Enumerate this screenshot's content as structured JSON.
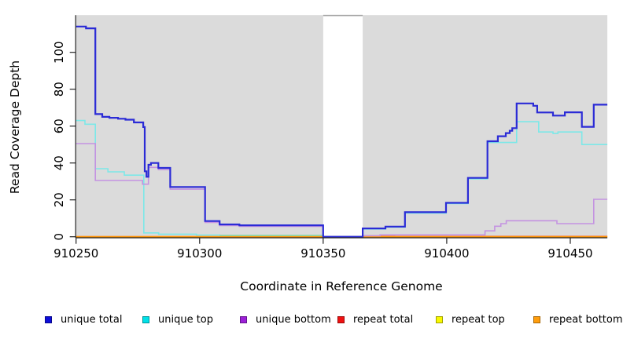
{
  "chart_data": {
    "type": "line",
    "subtype": "step-coverage-plot",
    "title": "",
    "xlabel": "Coordinate in Reference Genome",
    "ylabel": "Read Coverage Depth",
    "xlim": [
      910250,
      910465
    ],
    "ylim": [
      0,
      120
    ],
    "x_ticks": [
      910250,
      910300,
      910350,
      910400,
      910450
    ],
    "y_ticks": [
      0,
      20,
      40,
      60,
      80,
      100
    ],
    "grid": false,
    "plot_background": "#dbdbdb",
    "gap_region": {
      "from": 910350,
      "to": 910366,
      "fill": "#ffffff",
      "cap_color": "#a0a0a0"
    },
    "legend_position": "bottom",
    "series": [
      {
        "name": "unique total",
        "color": "#2b2bd6",
        "legend_color": "#0d0dd9",
        "points": [
          [
            910250,
            114
          ],
          [
            910254,
            113
          ],
          [
            910257.8,
            66.5
          ],
          [
            910260.6,
            65
          ],
          [
            910263.5,
            64.5
          ],
          [
            910267,
            64
          ],
          [
            910270,
            63.5
          ],
          [
            910273.4,
            62
          ],
          [
            910277.2,
            59.5
          ],
          [
            910277.8,
            35.5
          ],
          [
            910278.5,
            32.5
          ],
          [
            910279.3,
            39
          ],
          [
            910280.3,
            40
          ],
          [
            910283.3,
            37.3
          ],
          [
            910288.1,
            27
          ],
          [
            910302.2,
            8.5
          ],
          [
            910308.1,
            6.7
          ],
          [
            910316.1,
            6.2
          ],
          [
            910350,
            0
          ],
          [
            910366,
            4.5
          ],
          [
            910375.2,
            5.5
          ],
          [
            910383.1,
            13.3
          ],
          [
            910399.7,
            18.4
          ],
          [
            910408.6,
            31.9
          ],
          [
            910416.5,
            51.8
          ],
          [
            910420.7,
            54.5
          ],
          [
            910423.9,
            56.2
          ],
          [
            910425.5,
            57.5
          ],
          [
            910426.5,
            58.9
          ],
          [
            910428.3,
            72.3
          ],
          [
            910435,
            71
          ],
          [
            910436.6,
            67.4
          ],
          [
            910443,
            65.7
          ],
          [
            910447.8,
            67.5
          ],
          [
            910454.7,
            59.6
          ],
          [
            910459.5,
            71.6
          ],
          [
            910465,
            71.6
          ]
        ]
      },
      {
        "name": "unique top",
        "color": "#7de8e8",
        "legend_color": "#00e1e8",
        "points": [
          [
            910250,
            63
          ],
          [
            910253.6,
            61
          ],
          [
            910257.8,
            36.9
          ],
          [
            910262.9,
            35.2
          ],
          [
            910269.5,
            33.4
          ],
          [
            910277.4,
            2.1
          ],
          [
            910283.4,
            1.4
          ],
          [
            910298.7,
            0.9
          ],
          [
            910308.1,
            0.7
          ],
          [
            910350,
            0
          ],
          [
            910366,
            4.2
          ],
          [
            910375.2,
            5.2
          ],
          [
            910383.1,
            12.8
          ],
          [
            910399.7,
            18
          ],
          [
            910408.6,
            31.4
          ],
          [
            910416.5,
            51.1
          ],
          [
            910428.3,
            62.4
          ],
          [
            910437.2,
            56.8
          ],
          [
            910443,
            56
          ],
          [
            910445,
            56.8
          ],
          [
            910454.7,
            50
          ],
          [
            910465,
            50
          ]
        ]
      },
      {
        "name": "unique bottom",
        "color": "#c493e1",
        "legend_color": "#9c20d8",
        "points": [
          [
            910250,
            50.5
          ],
          [
            910257.8,
            30.5
          ],
          [
            910276.9,
            28.5
          ],
          [
            910279.3,
            37.6
          ],
          [
            910283.3,
            36.4
          ],
          [
            910288.1,
            25.8
          ],
          [
            910302.2,
            7.8
          ],
          [
            910308.1,
            6.1
          ],
          [
            910316.1,
            5.6
          ],
          [
            910350,
            0
          ],
          [
            910366,
            0.5
          ],
          [
            910373,
            1
          ],
          [
            910415.5,
            3.2
          ],
          [
            910419.4,
            5.7
          ],
          [
            910421.9,
            7.1
          ],
          [
            910424.1,
            8.7
          ],
          [
            910444.6,
            7.1
          ],
          [
            910459.5,
            20.3
          ],
          [
            910465,
            20.3
          ]
        ]
      },
      {
        "name": "repeat total",
        "color": "#e98585",
        "legend_color": "#ef1111",
        "points": [
          [
            910250,
            0.1
          ],
          [
            910350,
            0
          ],
          [
            910366,
            0.6
          ],
          [
            910379,
            0.3
          ],
          [
            910465,
            0.3
          ]
        ]
      },
      {
        "name": "repeat top",
        "color": "#f2f200",
        "legend_color": "#f8f800",
        "points": [
          [
            910250,
            0
          ],
          [
            910465,
            0
          ]
        ]
      },
      {
        "name": "repeat bottom",
        "color": "#ff9502",
        "legend_color": "#ff9d0c",
        "points": [
          [
            910250,
            0
          ],
          [
            910465,
            0
          ]
        ]
      }
    ],
    "overlap_segment": {
      "note": "unique top overlapping repeat top renders pale green",
      "from": 910308.1,
      "to": 910350,
      "value": 0.7,
      "color": "#8fd08f"
    }
  },
  "axes": {
    "x_title": "Coordinate in Reference Genome",
    "y_title": "Read Coverage Depth"
  },
  "legend": {
    "items": [
      {
        "label": "unique total",
        "color": "#0d0dd9"
      },
      {
        "label": "unique top",
        "color": "#00e1e8"
      },
      {
        "label": "unique bottom",
        "color": "#9c20d8"
      },
      {
        "label": "repeat total",
        "color": "#ef1111"
      },
      {
        "label": "repeat top",
        "color": "#f8f800"
      },
      {
        "label": "repeat bottom",
        "color": "#ff9d0c"
      }
    ]
  }
}
